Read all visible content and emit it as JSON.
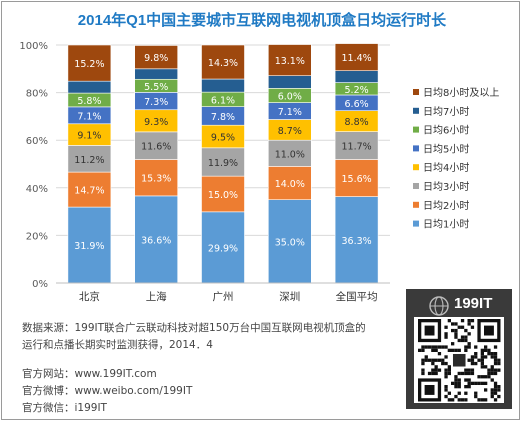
{
  "chart_data": {
    "type": "bar",
    "stacked": true,
    "title": "2014年Q1中国主要城市互联网电视机顶盒日均运行时长",
    "categories": [
      "北京",
      "上海",
      "广州",
      "深圳",
      "全国平均"
    ],
    "y_ticks": [
      "0%",
      "20%",
      "40%",
      "60%",
      "80%",
      "100%"
    ],
    "ylim": [
      0,
      100
    ],
    "grid": true,
    "legend_position": "right",
    "series": [
      {
        "name": "日均1小时",
        "color": "#5b9bd5",
        "values": [
          31.9,
          36.6,
          29.9,
          35.0,
          36.3
        ],
        "labels": [
          "31.9%",
          "36.6%",
          "29.9%",
          "35.0%",
          "36.3%"
        ]
      },
      {
        "name": "日均2小时",
        "color": "#ed7d31",
        "values": [
          14.7,
          15.3,
          15.0,
          14.0,
          15.6
        ],
        "labels": [
          "14.7%",
          "15.3%",
          "15.0%",
          "14.0%",
          "15.6%"
        ]
      },
      {
        "name": "日均3小时",
        "color": "#a5a5a5",
        "values": [
          11.2,
          11.6,
          11.9,
          11.0,
          11.7
        ],
        "labels": [
          "11.2%",
          "11.6%",
          "11.9%",
          "11.0%",
          "11.7%"
        ]
      },
      {
        "name": "日均4小时",
        "color": "#ffc000",
        "values": [
          9.1,
          9.3,
          9.5,
          8.7,
          8.8
        ],
        "labels": [
          "9.1%",
          "9.3%",
          "9.5%",
          "8.7%",
          "8.8%"
        ]
      },
      {
        "name": "日均5小时",
        "color": "#4472c4",
        "values": [
          7.1,
          7.3,
          7.8,
          7.1,
          6.6
        ],
        "labels": [
          "7.1%",
          "7.3%",
          "7.8%",
          "7.1%",
          "6.6%"
        ]
      },
      {
        "name": "日均6小时",
        "color": "#70ad47",
        "values": [
          5.8,
          5.5,
          6.1,
          6.0,
          5.2
        ],
        "labels": [
          "5.8%",
          "5.5%",
          "6.1%",
          "6.0%",
          "5.2%"
        ]
      },
      {
        "name": "日均7小时",
        "color": "#255e91",
        "values": [
          5.0,
          4.4,
          5.5,
          5.3,
          5.0
        ],
        "labels": [
          "",
          "",
          "",
          "",
          ""
        ]
      },
      {
        "name": "日均8小时及以上",
        "color": "#9e480e",
        "values": [
          15.2,
          9.8,
          14.3,
          13.1,
          11.4
        ],
        "labels": [
          "15.2%",
          "9.8%",
          "14.3%",
          "13.1%",
          "11.4%"
        ]
      }
    ]
  },
  "footer": {
    "source_line1": "数据来源：199IT联合广云联动科技对超150万台中国互联网电视机顶盒的",
    "source_line2": "运行和点播长期实时监测获得，2014．4",
    "website": "官方网站：www.199IT.com",
    "weibo": "官方微博：www.weibo.com/199IT",
    "wechat": "官方微信：i199IT"
  },
  "brand": {
    "logo_text": "199IT",
    "title_color": "#1f7ac4"
  }
}
